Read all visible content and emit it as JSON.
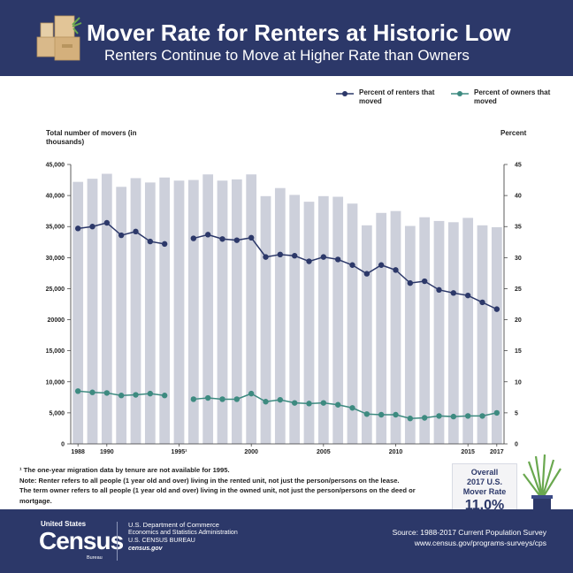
{
  "header": {
    "title": "Mover Rate for Renters at Historic Low",
    "subtitle": "Renters Continue to Move at Higher Rate than Owners"
  },
  "colors": {
    "navy": "#2c3869",
    "renters": "#2c3869",
    "owners": "#3d8a80",
    "bars": "#cdd0db"
  },
  "legend": {
    "renters_label": "Percent of renters that moved",
    "owners_label": "Percent of owners that moved"
  },
  "chart_data": {
    "type": "bar",
    "left_axis_title": "Total number of movers (in thousands)",
    "right_axis_title": "Percent",
    "left_ylim": [
      0,
      45000
    ],
    "left_ticks": [
      "0",
      "5,000",
      "10,000",
      "15,000",
      "20000",
      "25,000",
      "30,000",
      "35,000",
      "40,000",
      "45,000"
    ],
    "right_ylim": [
      0,
      45
    ],
    "right_ticks": [
      "0",
      "5",
      "10",
      "15",
      "20",
      "25",
      "30",
      "35",
      "40",
      "45"
    ],
    "x_tick_labels": [
      {
        "year": 1988,
        "label": "1988"
      },
      {
        "year": 1990,
        "label": "1990"
      },
      {
        "year": 1995,
        "label": "1995¹"
      },
      {
        "year": 2000,
        "label": "2000"
      },
      {
        "year": 2005,
        "label": "2005"
      },
      {
        "year": 2010,
        "label": "2010"
      },
      {
        "year": 2015,
        "label": "2015"
      },
      {
        "year": 2017,
        "label": "2017"
      }
    ],
    "years": [
      1988,
      1989,
      1990,
      1991,
      1992,
      1993,
      1994,
      1995,
      1996,
      1997,
      1998,
      1999,
      2000,
      2001,
      2002,
      2003,
      2004,
      2005,
      2006,
      2007,
      2008,
      2009,
      2010,
      2011,
      2012,
      2013,
      2014,
      2015,
      2016,
      2017
    ],
    "series": [
      {
        "name": "Total number of movers",
        "kind": "bar",
        "axis": "left",
        "values": [
          42200,
          42700,
          43500,
          41400,
          42800,
          42100,
          42900,
          42400,
          42500,
          43400,
          42400,
          42600,
          43400,
          39900,
          41200,
          40100,
          39000,
          39900,
          39800,
          38700,
          35200,
          37200,
          37500,
          35100,
          36500,
          35900,
          35700,
          36400,
          35200,
          34900
        ]
      },
      {
        "name": "Percent of renters that moved",
        "kind": "line",
        "axis": "right",
        "values": [
          34.7,
          35.0,
          35.6,
          33.6,
          34.2,
          32.6,
          32.2,
          null,
          33.1,
          33.7,
          33.0,
          32.8,
          33.2,
          30.1,
          30.5,
          30.3,
          29.4,
          30.1,
          29.7,
          28.8,
          27.4,
          28.8,
          28.0,
          25.9,
          26.2,
          24.8,
          24.3,
          23.9,
          22.8,
          21.7
        ]
      },
      {
        "name": "Percent of owners that moved",
        "kind": "line",
        "axis": "right",
        "values": [
          8.5,
          8.3,
          8.2,
          7.8,
          7.9,
          8.1,
          7.8,
          null,
          7.2,
          7.4,
          7.2,
          7.2,
          8.1,
          6.8,
          7.1,
          6.6,
          6.5,
          6.6,
          6.3,
          5.8,
          4.8,
          4.7,
          4.7,
          4.1,
          4.2,
          4.5,
          4.4,
          4.5,
          4.5,
          5.0
        ]
      }
    ]
  },
  "notes": {
    "footnote": "¹ The one-year migration data by tenure are not available for 1995.",
    "renter_note": "Note: Renter refers to all people (1 year old and over) living in the rented unit, not just the person/persons on the lease.",
    "owner_note": "The term owner refers to all people (1 year old and over) living in the owned unit, not just the person/persons on the deed or mortgage."
  },
  "callout": {
    "line1": "Overall",
    "line2": "2017 U.S.",
    "line3": "Mover Rate",
    "value": "11.0%"
  },
  "footer": {
    "logo_top": "United States",
    "logo_main": "Census",
    "logo_sub": "Bureau",
    "dept_line1": "U.S. Department of Commerce",
    "dept_line2": "Economics and Statistics Administration",
    "dept_line3": "U.S. CENSUS BUREAU",
    "dept_line4": "census.gov",
    "source": "Source: 1988-2017 Current Population Survey",
    "url": "www.census.gov/programs-surveys/cps"
  }
}
